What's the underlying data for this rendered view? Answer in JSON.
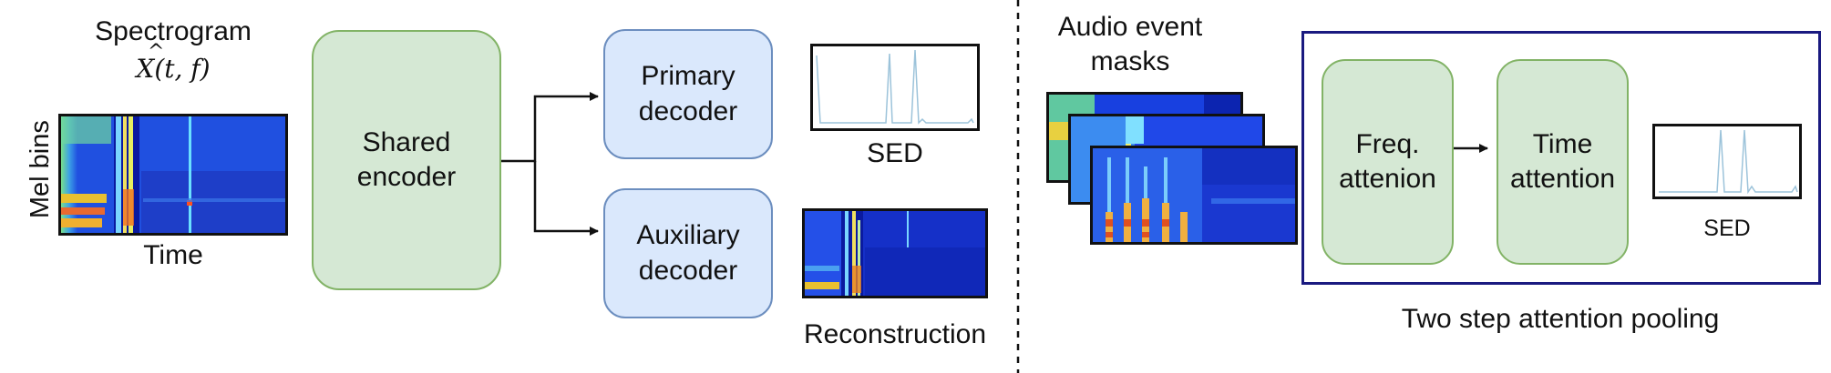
{
  "left": {
    "spectrogram_title": "Spectrogram",
    "spectrogram_symbol_hat": "X",
    "spectrogram_symbol_args": "(t, f)",
    "y_axis_label": "Mel bins",
    "x_axis_label": "Time",
    "shared_encoder": "Shared\nencoder",
    "primary_decoder": "Primary\ndecoder",
    "auxiliary_decoder": "Auxiliary\ndecoder",
    "sed_label": "SED",
    "reconstruction_label": "Reconstruction"
  },
  "right": {
    "masks_label": "Audio event\nmasks",
    "freq_attention": "Freq.\nattenion",
    "time_attention": "Time\nattention",
    "sed_label": "SED",
    "pooling_label": "Two step attention pooling"
  },
  "colors": {
    "green_fill": "#d5e8d4",
    "green_border": "#82b366",
    "blue_fill": "#dae8fc",
    "blue_border": "#6c8ebf",
    "frame_border": "#1a1a80",
    "sed_line": "#9cc3da",
    "spec_background": "#1f3fd6"
  }
}
